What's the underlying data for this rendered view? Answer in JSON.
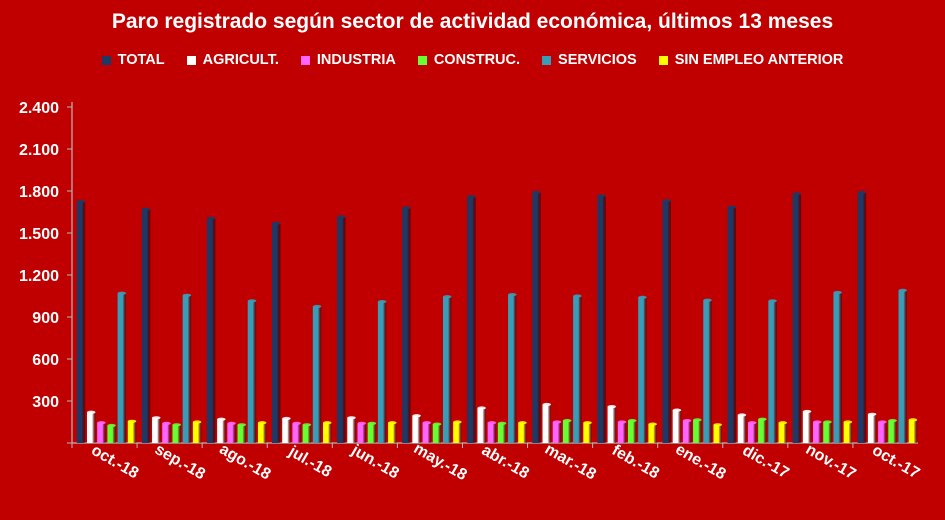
{
  "chart_data": {
    "type": "bar",
    "title": "Paro registrado según sector de actividad económica, últimos 13 meses",
    "categories": [
      "oct.-18",
      "sep.-18",
      "ago.-18",
      "jul.-18",
      "jun.-18",
      "may.-18",
      "abr.-18",
      "mar.-18",
      "feb.-18",
      "ene.-18",
      "dic.-17",
      "nov.-17",
      "oct.-17"
    ],
    "ylim": [
      0,
      2400
    ],
    "yticks": [
      0,
      300,
      600,
      900,
      1200,
      1500,
      1800,
      2100,
      2400
    ],
    "ytick_labels": [
      "",
      "300",
      "600",
      "900",
      "1.200",
      "1.500",
      "1.800",
      "2.100",
      "2.400"
    ],
    "legend_position": "top",
    "grid": false,
    "series": [
      {
        "name": "TOTAL",
        "color": "#1f3864",
        "values": [
          1725,
          1670,
          1605,
          1570,
          1615,
          1680,
          1760,
          1790,
          1765,
          1730,
          1685,
          1780,
          1790
        ]
      },
      {
        "name": "AGRICULT.",
        "color": "#ffffff",
        "values": [
          220,
          180,
          170,
          175,
          180,
          195,
          250,
          275,
          260,
          235,
          200,
          225,
          205
        ]
      },
      {
        "name": "INDUSTRIA",
        "color": "#ff66ff",
        "values": [
          145,
          140,
          140,
          140,
          140,
          145,
          145,
          150,
          150,
          160,
          145,
          150,
          150
        ]
      },
      {
        "name": "CONSTRUC.",
        "color": "#66ff33",
        "values": [
          125,
          130,
          130,
          130,
          140,
          135,
          140,
          160,
          160,
          165,
          170,
          150,
          160
        ]
      },
      {
        "name": "SERVICIOS",
        "color": "#3a9db8",
        "values": [
          1070,
          1055,
          1015,
          975,
          1010,
          1045,
          1060,
          1050,
          1040,
          1020,
          1015,
          1075,
          1090
        ]
      },
      {
        "name": "SIN EMPLEO ANTERIOR",
        "color": "#ffff00",
        "values": [
          155,
          150,
          145,
          145,
          145,
          150,
          145,
          145,
          135,
          130,
          145,
          150,
          165
        ]
      }
    ]
  }
}
